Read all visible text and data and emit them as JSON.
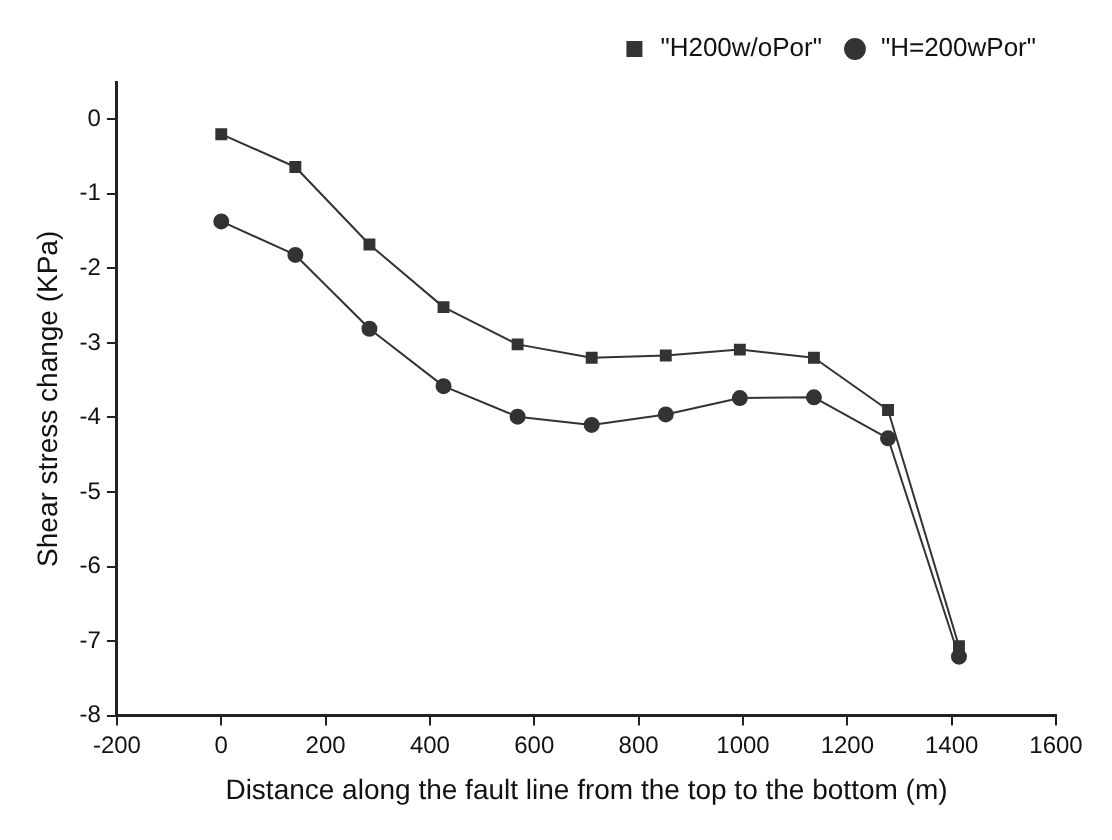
{
  "chart_data": {
    "type": "line",
    "xlabel": "Distance along the fault line from the top to the bottom (m)",
    "ylabel": "Shear stress change (KPa)",
    "x": [
      0,
      142,
      284,
      426,
      568,
      710,
      852,
      994,
      1136,
      1278,
      1414
    ],
    "series": [
      {
        "name": "\"H200w/oPor\"",
        "color": "#333333",
        "marker": "square",
        "values": [
          -0.2,
          -0.64,
          -1.68,
          -2.52,
          -3.02,
          -3.2,
          -3.17,
          -3.09,
          -3.2,
          -3.9,
          -7.07
        ]
      },
      {
        "name": "\"H=200wPor\"",
        "color": "#333333",
        "marker": "circle",
        "values": [
          -1.37,
          -1.82,
          -2.81,
          -3.58,
          -3.99,
          -4.1,
          -3.96,
          -3.74,
          -3.73,
          -4.28,
          -7.21
        ]
      }
    ],
    "xlim": [
      -200,
      1600
    ],
    "xticks": [
      -200,
      0,
      200,
      400,
      600,
      800,
      1000,
      1200,
      1400,
      1600
    ],
    "ylim": [
      -8,
      0.5
    ],
    "yticks": [
      -8,
      -7,
      -6,
      -5,
      -4,
      -3,
      -2,
      -1,
      0
    ],
    "grid": false,
    "legend": "top right",
    "line_style": "solid"
  }
}
